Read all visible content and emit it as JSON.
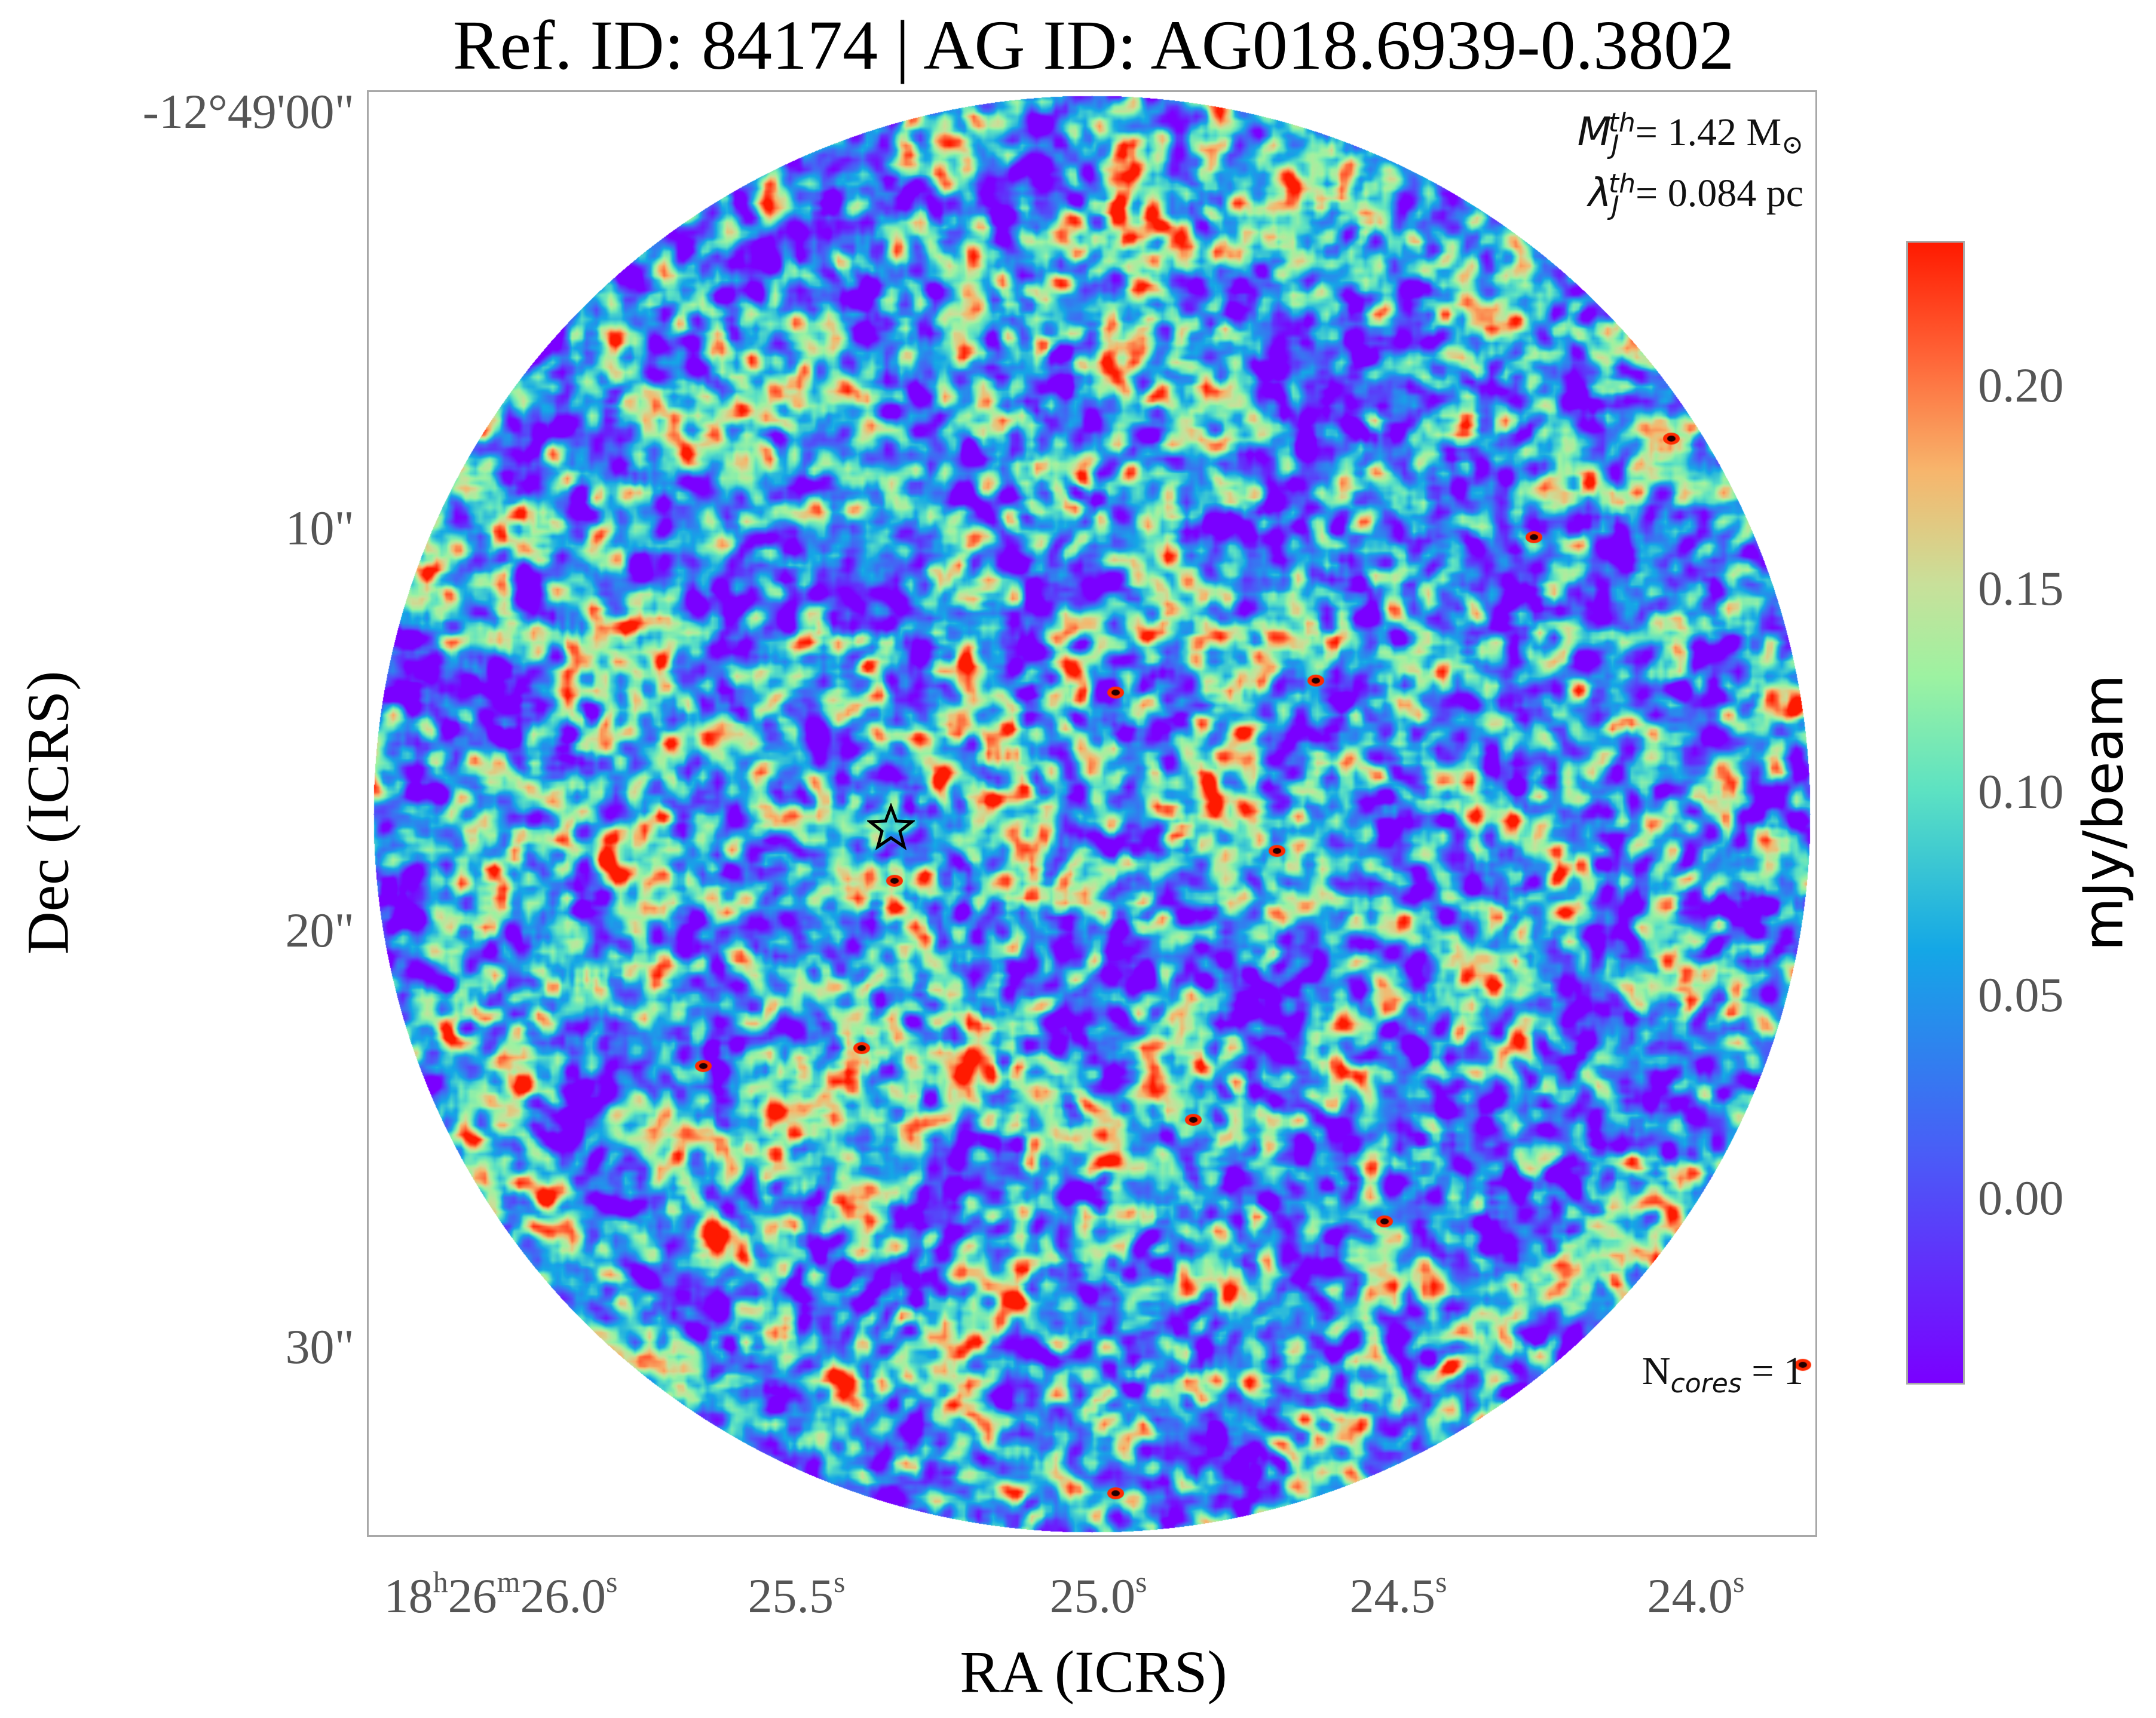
{
  "title": "Ref. ID: 84174 | AG ID: AG018.6939-0.3802",
  "chart_data": {
    "type": "heatmap",
    "xlabel": "RA (ICRS)",
    "ylabel": "Dec (ICRS)",
    "x_ticks": [
      {
        "label_h": "18",
        "label_m": "26",
        "label_s": "26.0"
      },
      {
        "label_s": "25.5"
      },
      {
        "label_s": "25.0"
      },
      {
        "label_s": "24.5"
      },
      {
        "label_s": "24.0"
      }
    ],
    "y_ticks": [
      "-12°49'00\"",
      "10\"",
      "20\"",
      "30\""
    ],
    "colorbar": {
      "label": "mJy/beam",
      "ticks": [
        "0.20",
        "0.15",
        "0.10",
        "0.05",
        "0.00"
      ],
      "range": [
        -0.045,
        0.235
      ],
      "colormap": "rainbow"
    },
    "annotations": {
      "mass_label": "= 1.42 M",
      "mass_symbol": "M",
      "mass_sub": "J",
      "mass_sup": "th",
      "sun_symbol": "⊙",
      "lambda_label": "= 0.084 pc",
      "lambda_symbol": "λ",
      "lambda_sub": "J",
      "lambda_sup": "th",
      "ncores_prefix": "N",
      "ncores_sub": "cores",
      "ncores_value": " = 1"
    },
    "markers": [
      {
        "type": "star",
        "ra": "18h26m25.35s",
        "dec": "-12°49'17\""
      }
    ],
    "field_shape": "circle"
  },
  "colors": {
    "background": "#7a00ff",
    "frame": "#a8a8a8",
    "tick_text": "#555555"
  }
}
